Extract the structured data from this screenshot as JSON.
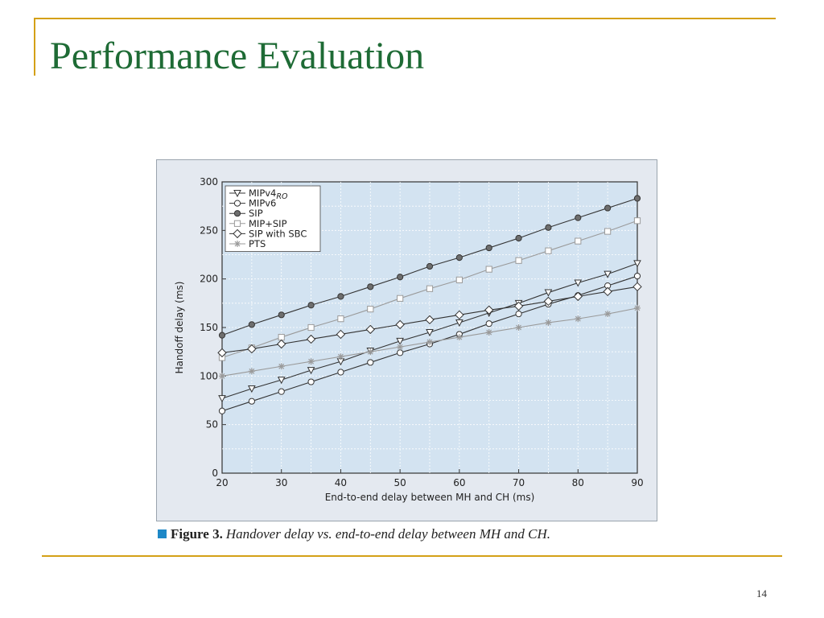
{
  "slide": {
    "title": "Performance Evaluation",
    "page_number": "14",
    "accent_color": "#d4a017",
    "title_color": "#1e6b35"
  },
  "figure": {
    "caption_label": "Figure 3.",
    "caption_text": "Handover delay vs. end-to-end delay between MH and CH.",
    "caption_marker_color": "#1e88c7"
  },
  "chart_data": {
    "type": "line",
    "title": "",
    "xlabel": "End-to-end delay between MH and CH (ms)",
    "ylabel": "Handoff delay (ms)",
    "xlim": [
      20,
      90
    ],
    "ylim": [
      0,
      300
    ],
    "xticks": [
      20,
      30,
      40,
      50,
      60,
      70,
      80,
      90
    ],
    "yticks": [
      0,
      50,
      100,
      150,
      200,
      250,
      300
    ],
    "grid": true,
    "legend_position": "top-left",
    "x": [
      20,
      25,
      30,
      35,
      40,
      45,
      50,
      55,
      60,
      65,
      70,
      75,
      80,
      85,
      90
    ],
    "series": [
      {
        "name": "MIPv4",
        "name_sub": "RO",
        "marker": "triangle-down",
        "color": "#333333",
        "values": [
          77,
          87,
          96,
          106,
          115,
          126,
          136,
          145,
          155,
          165,
          175,
          186,
          196,
          205,
          216
        ]
      },
      {
        "name": "MIPv6",
        "marker": "circle-open",
        "color": "#333333",
        "values": [
          64,
          74,
          84,
          94,
          104,
          114,
          124,
          133,
          143,
          154,
          164,
          174,
          183,
          193,
          203
        ]
      },
      {
        "name": "SIP",
        "marker": "circle-filled",
        "color": "#333333",
        "values": [
          142,
          153,
          163,
          173,
          182,
          192,
          202,
          213,
          222,
          232,
          242,
          253,
          263,
          273,
          283
        ]
      },
      {
        "name": "MIP+SIP",
        "marker": "square-open",
        "color": "#9a9a9a",
        "values": [
          119,
          129,
          140,
          150,
          159,
          169,
          180,
          190,
          199,
          210,
          219,
          229,
          239,
          249,
          260
        ]
      },
      {
        "name": "SIP with SBC",
        "marker": "diamond-open",
        "color": "#333333",
        "values": [
          124,
          128,
          133,
          138,
          143,
          148,
          153,
          158,
          163,
          168,
          172,
          177,
          182,
          187,
          192
        ]
      },
      {
        "name": "PTS",
        "marker": "asterisk",
        "color": "#9a9a9a",
        "values": [
          100,
          105,
          110,
          115,
          120,
          125,
          130,
          135,
          140,
          145,
          150,
          155,
          159,
          164,
          170
        ]
      }
    ]
  }
}
